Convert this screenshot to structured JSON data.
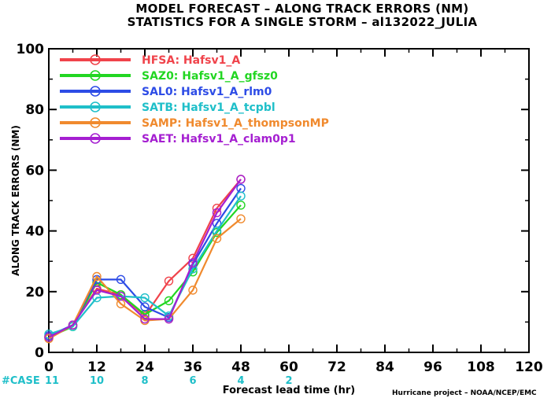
{
  "title_line1": "MODEL FORECAST – ALONG TRACK ERRORS (NM)",
  "title_line2": "STATISTICS FOR A SINGLE STORM – al132022_JULIA",
  "credit": "Hurricane project – NOAA/NCEP/EMC",
  "case_label": "#CASE",
  "colors": {
    "case_text": "#1fbfc9"
  },
  "chart_data": {
    "type": "line",
    "xlabel": "Forecast lead time (hr)",
    "ylabel": "ALONG TRACK ERRORS (NM)",
    "xlim": [
      0,
      120
    ],
    "ylim": [
      0,
      100
    ],
    "x_ticks": [
      "0",
      "12",
      "24",
      "36",
      "48",
      "60",
      "72",
      "84",
      "96",
      "108",
      "120"
    ],
    "y_ticks": [
      "0",
      "20",
      "40",
      "60",
      "80",
      "100"
    ],
    "x": [
      0,
      6,
      12,
      18,
      24,
      30,
      36,
      42,
      48
    ],
    "cases": [
      "11",
      "10",
      "8",
      "6",
      "4",
      "2"
    ],
    "case_x": [
      0,
      12,
      24,
      36,
      48,
      60
    ],
    "series": [
      {
        "name": "HFSA: Hafsv1_A",
        "color": "#f0434b",
        "values": [
          5,
          9,
          21,
          19,
          12,
          23.5,
          31,
          47.5,
          57
        ]
      },
      {
        "name": "SAZ0: Hafsv1_A_gfsz0",
        "color": "#22d622",
        "values": [
          5,
          8.5,
          23,
          19,
          12.5,
          17,
          26.5,
          39.5,
          48.5
        ]
      },
      {
        "name": "SAL0: Hafsv1_A_rlm0",
        "color": "#2d4ce6",
        "values": [
          5.5,
          9,
          24,
          24,
          15,
          11.5,
          29,
          42.5,
          54
        ]
      },
      {
        "name": "SATB: Hafsv1_A_tcpbl",
        "color": "#1fbfc9",
        "values": [
          6,
          8.5,
          18,
          18.5,
          18,
          12,
          27.5,
          40,
          51.5
        ]
      },
      {
        "name": "SAMP: Hafsv1_A_thompsonMP",
        "color": "#f08a2e",
        "values": [
          4.5,
          9,
          25,
          16,
          10.5,
          11,
          20.5,
          37.5,
          44
        ]
      },
      {
        "name": "SAET: Hafsv1_A_clam0p1",
        "color": "#a51fd1",
        "values": [
          5,
          9,
          20.5,
          18.5,
          11,
          11,
          29.5,
          46,
          57
        ]
      }
    ]
  }
}
